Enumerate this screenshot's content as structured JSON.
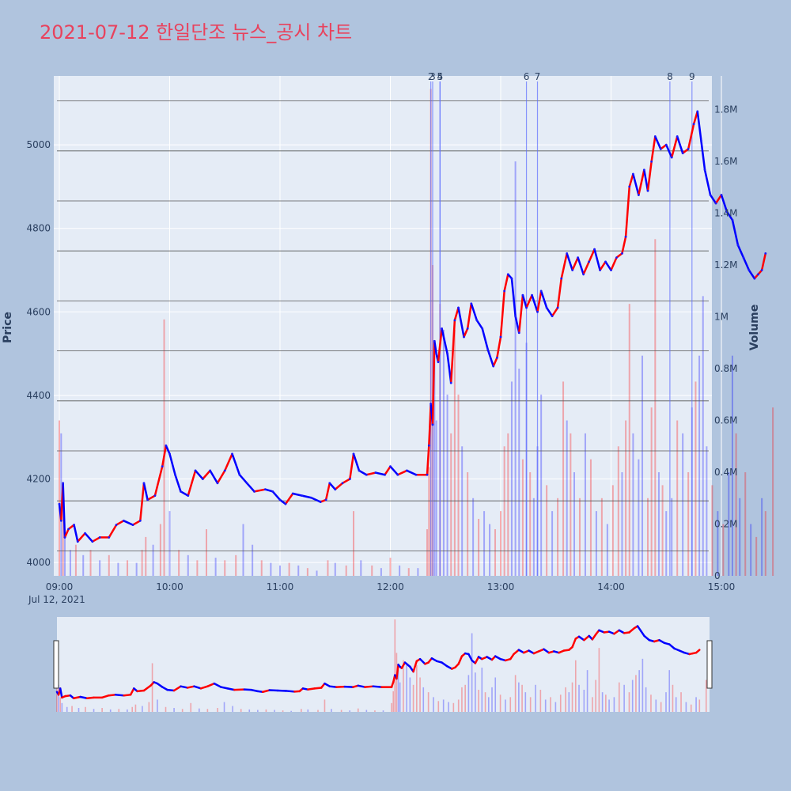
{
  "title": "2021-07-12 한일단조 뉴스_공시 차트",
  "colors": {
    "background": "#b0c4de",
    "plot_bg": "#e5ecf6",
    "title": "#e8425d",
    "up": "#ff0000",
    "down": "#0000ff",
    "marker": "#6070ff",
    "hline": "#555555"
  },
  "chart_data": {
    "type": "line",
    "ylabel": "Price",
    "y2label": "Volume",
    "x_ticks": [
      "09:00",
      "10:00",
      "11:00",
      "12:00",
      "13:00",
      "14:00",
      "15:00"
    ],
    "date_label": "Jul 12, 2021",
    "xlim": [
      "09:00",
      "15:30"
    ],
    "ylim": [
      3968,
      5165
    ],
    "y_ticks": [
      "4000",
      "4200",
      "4400",
      "4600",
      "4800",
      "5000"
    ],
    "y2lim": [
      0,
      1.93
    ],
    "y2_ticks": [
      "0",
      "0.2M",
      "0.4M",
      "0.6M",
      "0.8M",
      "1M",
      "1.2M",
      "1.4M",
      "1.6M",
      "1.8M"
    ],
    "y2_tick_values": [
      0,
      0.2,
      0.4,
      0.6,
      0.8,
      1.0,
      1.2,
      1.4,
      1.6,
      1.8
    ],
    "y2_unit": "M",
    "horizontal_lines": [
      0.05,
      0.15,
      0.25,
      0.35,
      0.45,
      0.55,
      0.65,
      0.75,
      0.85,
      0.95
    ],
    "news_markers": [
      {
        "label": "2",
        "time": "12:22"
      },
      {
        "label": "3",
        "time": "12:23"
      },
      {
        "label": "4",
        "time": "12:27"
      },
      {
        "label": "5",
        "time": "12:27"
      },
      {
        "label": "6",
        "time": "13:14"
      },
      {
        "label": "7",
        "time": "13:20"
      },
      {
        "label": "8",
        "time": "14:32"
      },
      {
        "label": "9",
        "time": "14:44"
      }
    ],
    "price": [
      [
        "09:00",
        4140
      ],
      [
        "09:01",
        4100
      ],
      [
        "09:02",
        4190
      ],
      [
        "09:03",
        4060
      ],
      [
        "09:05",
        4080
      ],
      [
        "09:08",
        4090
      ],
      [
        "09:10",
        4050
      ],
      [
        "09:14",
        4070
      ],
      [
        "09:18",
        4050
      ],
      [
        "09:22",
        4060
      ],
      [
        "09:27",
        4060
      ],
      [
        "09:31",
        4090
      ],
      [
        "09:35",
        4100
      ],
      [
        "09:40",
        4090
      ],
      [
        "09:44",
        4100
      ],
      [
        "09:46",
        4190
      ],
      [
        "09:48",
        4150
      ],
      [
        "09:52",
        4160
      ],
      [
        "09:56",
        4230
      ],
      [
        "09:58",
        4280
      ],
      [
        "10:00",
        4260
      ],
      [
        "10:03",
        4210
      ],
      [
        "10:06",
        4170
      ],
      [
        "10:10",
        4160
      ],
      [
        "10:14",
        4220
      ],
      [
        "10:18",
        4200
      ],
      [
        "10:22",
        4220
      ],
      [
        "10:26",
        4190
      ],
      [
        "10:30",
        4220
      ],
      [
        "10:34",
        4260
      ],
      [
        "10:38",
        4210
      ],
      [
        "10:42",
        4190
      ],
      [
        "10:46",
        4170
      ],
      [
        "10:52",
        4175
      ],
      [
        "10:56",
        4170
      ],
      [
        "11:00",
        4150
      ],
      [
        "11:03",
        4140
      ],
      [
        "11:07",
        4165
      ],
      [
        "11:12",
        4160
      ],
      [
        "11:17",
        4155
      ],
      [
        "11:22",
        4145
      ],
      [
        "11:25",
        4150
      ],
      [
        "11:27",
        4190
      ],
      [
        "11:30",
        4175
      ],
      [
        "11:34",
        4190
      ],
      [
        "11:38",
        4200
      ],
      [
        "11:40",
        4260
      ],
      [
        "11:43",
        4220
      ],
      [
        "11:47",
        4210
      ],
      [
        "11:52",
        4215
      ],
      [
        "11:57",
        4210
      ],
      [
        "12:00",
        4230
      ],
      [
        "12:04",
        4210
      ],
      [
        "12:09",
        4220
      ],
      [
        "12:14",
        4210
      ],
      [
        "12:20",
        4210
      ],
      [
        "12:21",
        4280
      ],
      [
        "12:22",
        4380
      ],
      [
        "12:23",
        4330
      ],
      [
        "12:24",
        4530
      ],
      [
        "12:25",
        4500
      ],
      [
        "12:26",
        4480
      ],
      [
        "12:28",
        4560
      ],
      [
        "12:31",
        4500
      ],
      [
        "12:33",
        4430
      ],
      [
        "12:35",
        4580
      ],
      [
        "12:37",
        4610
      ],
      [
        "12:40",
        4540
      ],
      [
        "12:42",
        4560
      ],
      [
        "12:44",
        4620
      ],
      [
        "12:47",
        4580
      ],
      [
        "12:50",
        4560
      ],
      [
        "12:53",
        4510
      ],
      [
        "12:56",
        4470
      ],
      [
        "12:58",
        4490
      ],
      [
        "13:00",
        4540
      ],
      [
        "13:02",
        4650
      ],
      [
        "13:04",
        4690
      ],
      [
        "13:06",
        4680
      ],
      [
        "13:08",
        4590
      ],
      [
        "13:10",
        4550
      ],
      [
        "13:12",
        4640
      ],
      [
        "13:14",
        4610
      ],
      [
        "13:17",
        4640
      ],
      [
        "13:20",
        4600
      ],
      [
        "13:22",
        4650
      ],
      [
        "13:25",
        4610
      ],
      [
        "13:28",
        4590
      ],
      [
        "13:31",
        4610
      ],
      [
        "13:33",
        4680
      ],
      [
        "13:36",
        4740
      ],
      [
        "13:39",
        4700
      ],
      [
        "13:42",
        4730
      ],
      [
        "13:45",
        4690
      ],
      [
        "13:48",
        4720
      ],
      [
        "13:51",
        4750
      ],
      [
        "13:54",
        4700
      ],
      [
        "13:57",
        4720
      ],
      [
        "14:00",
        4700
      ],
      [
        "14:03",
        4730
      ],
      [
        "14:06",
        4740
      ],
      [
        "14:08",
        4780
      ],
      [
        "14:10",
        4900
      ],
      [
        "14:12",
        4930
      ],
      [
        "14:15",
        4880
      ],
      [
        "14:18",
        4940
      ],
      [
        "14:20",
        4890
      ],
      [
        "14:22",
        4960
      ],
      [
        "14:24",
        5020
      ],
      [
        "14:27",
        4990
      ],
      [
        "14:30",
        5000
      ],
      [
        "14:33",
        4970
      ],
      [
        "14:36",
        5020
      ],
      [
        "14:39",
        4980
      ],
      [
        "14:42",
        4990
      ],
      [
        "14:45",
        5050
      ],
      [
        "14:47",
        5080
      ],
      [
        "14:49",
        5010
      ],
      [
        "14:51",
        4940
      ],
      [
        "14:54",
        4880
      ],
      [
        "14:57",
        4860
      ],
      [
        "15:00",
        4880
      ],
      [
        "15:03",
        4840
      ],
      [
        "15:06",
        4820
      ],
      [
        "15:09",
        4760
      ],
      [
        "15:12",
        4730
      ],
      [
        "15:15",
        4700
      ],
      [
        "15:18",
        4680
      ],
      [
        "15:20",
        4690
      ],
      [
        "15:22",
        4700
      ],
      [
        "15:24",
        4740
      ]
    ],
    "volume": [
      [
        "09:00",
        0.6,
        "up"
      ],
      [
        "09:01",
        0.55,
        "down"
      ],
      [
        "09:02",
        0.3,
        "up"
      ],
      [
        "09:03",
        0.18,
        "down"
      ],
      [
        "09:06",
        0.1,
        "down"
      ],
      [
        "09:09",
        0.12,
        "up"
      ],
      [
        "09:13",
        0.08,
        "down"
      ],
      [
        "09:17",
        0.1,
        "up"
      ],
      [
        "09:22",
        0.06,
        "down"
      ],
      [
        "09:27",
        0.08,
        "up"
      ],
      [
        "09:32",
        0.05,
        "down"
      ],
      [
        "09:37",
        0.06,
        "up"
      ],
      [
        "09:42",
        0.05,
        "down"
      ],
      [
        "09:45",
        0.1,
        "up"
      ],
      [
        "09:47",
        0.15,
        "up"
      ],
      [
        "09:51",
        0.12,
        "down"
      ],
      [
        "09:55",
        0.2,
        "up"
      ],
      [
        "09:57",
        0.99,
        "up"
      ],
      [
        "10:00",
        0.25,
        "down"
      ],
      [
        "10:05",
        0.1,
        "up"
      ],
      [
        "10:10",
        0.08,
        "down"
      ],
      [
        "10:15",
        0.06,
        "up"
      ],
      [
        "10:20",
        0.18,
        "up"
      ],
      [
        "10:25",
        0.07,
        "down"
      ],
      [
        "10:30",
        0.06,
        "up"
      ],
      [
        "10:36",
        0.08,
        "up"
      ],
      [
        "10:40",
        0.2,
        "down"
      ],
      [
        "10:45",
        0.12,
        "down"
      ],
      [
        "10:50",
        0.06,
        "up"
      ],
      [
        "10:55",
        0.05,
        "down"
      ],
      [
        "11:00",
        0.04,
        "down"
      ],
      [
        "11:05",
        0.05,
        "up"
      ],
      [
        "11:10",
        0.04,
        "down"
      ],
      [
        "11:15",
        0.03,
        "up"
      ],
      [
        "11:20",
        0.02,
        "down"
      ],
      [
        "11:26",
        0.06,
        "up"
      ],
      [
        "11:30",
        0.05,
        "down"
      ],
      [
        "11:36",
        0.04,
        "up"
      ],
      [
        "11:40",
        0.25,
        "up"
      ],
      [
        "11:44",
        0.06,
        "down"
      ],
      [
        "11:50",
        0.04,
        "up"
      ],
      [
        "11:55",
        0.03,
        "down"
      ],
      [
        "12:00",
        0.07,
        "up"
      ],
      [
        "12:05",
        0.04,
        "down"
      ],
      [
        "12:10",
        0.03,
        "up"
      ],
      [
        "12:15",
        0.03,
        "down"
      ],
      [
        "12:20",
        0.18,
        "up"
      ],
      [
        "12:21",
        0.42,
        "up"
      ],
      [
        "12:22",
        1.88,
        "up"
      ],
      [
        "12:23",
        1.2,
        "up"
      ],
      [
        "12:24",
        0.85,
        "down"
      ],
      [
        "12:25",
        0.6,
        "down"
      ],
      [
        "12:27",
        1.05,
        "up"
      ],
      [
        "12:29",
        0.95,
        "down"
      ],
      [
        "12:31",
        0.7,
        "down"
      ],
      [
        "12:33",
        0.55,
        "up"
      ],
      [
        "12:35",
        0.95,
        "up"
      ],
      [
        "12:37",
        0.7,
        "up"
      ],
      [
        "12:39",
        0.5,
        "down"
      ],
      [
        "12:42",
        0.4,
        "up"
      ],
      [
        "12:45",
        0.3,
        "down"
      ],
      [
        "12:48",
        0.22,
        "up"
      ],
      [
        "12:51",
        0.25,
        "down"
      ],
      [
        "12:54",
        0.2,
        "down"
      ],
      [
        "12:57",
        0.18,
        "up"
      ],
      [
        "13:00",
        0.25,
        "up"
      ],
      [
        "13:02",
        0.5,
        "up"
      ],
      [
        "13:04",
        0.55,
        "up"
      ],
      [
        "13:06",
        0.75,
        "down"
      ],
      [
        "13:08",
        1.6,
        "down"
      ],
      [
        "13:10",
        0.8,
        "down"
      ],
      [
        "13:12",
        0.45,
        "up"
      ],
      [
        "13:14",
        0.9,
        "down"
      ],
      [
        "13:16",
        0.4,
        "up"
      ],
      [
        "13:18",
        0.3,
        "down"
      ],
      [
        "13:20",
        0.5,
        "down"
      ],
      [
        "13:22",
        0.7,
        "down"
      ],
      [
        "13:25",
        0.35,
        "up"
      ],
      [
        "13:28",
        0.25,
        "down"
      ],
      [
        "13:31",
        0.3,
        "up"
      ],
      [
        "13:34",
        0.75,
        "up"
      ],
      [
        "13:36",
        0.6,
        "down"
      ],
      [
        "13:38",
        0.55,
        "up"
      ],
      [
        "13:40",
        0.4,
        "down"
      ],
      [
        "13:43",
        0.3,
        "up"
      ],
      [
        "13:46",
        0.55,
        "down"
      ],
      [
        "13:49",
        0.45,
        "up"
      ],
      [
        "13:52",
        0.25,
        "down"
      ],
      [
        "13:55",
        0.3,
        "up"
      ],
      [
        "13:58",
        0.2,
        "down"
      ],
      [
        "14:01",
        0.35,
        "up"
      ],
      [
        "14:04",
        0.5,
        "up"
      ],
      [
        "14:06",
        0.4,
        "down"
      ],
      [
        "14:08",
        0.6,
        "up"
      ],
      [
        "14:10",
        1.05,
        "up"
      ],
      [
        "14:12",
        0.55,
        "down"
      ],
      [
        "14:15",
        0.45,
        "down"
      ],
      [
        "14:17",
        0.85,
        "down"
      ],
      [
        "14:20",
        0.3,
        "up"
      ],
      [
        "14:22",
        0.65,
        "up"
      ],
      [
        "14:24",
        1.3,
        "up"
      ],
      [
        "14:26",
        0.4,
        "down"
      ],
      [
        "14:28",
        0.35,
        "up"
      ],
      [
        "14:30",
        0.25,
        "down"
      ],
      [
        "14:33",
        0.3,
        "down"
      ],
      [
        "14:36",
        0.6,
        "up"
      ],
      [
        "14:39",
        0.55,
        "down"
      ],
      [
        "14:42",
        0.4,
        "up"
      ],
      [
        "14:44",
        0.65,
        "down"
      ],
      [
        "14:46",
        0.75,
        "up"
      ],
      [
        "14:48",
        0.85,
        "down"
      ],
      [
        "14:50",
        1.08,
        "down"
      ],
      [
        "14:52",
        0.5,
        "down"
      ],
      [
        "14:55",
        0.35,
        "up"
      ],
      [
        "14:58",
        0.25,
        "down"
      ],
      [
        "15:01",
        0.2,
        "up"
      ],
      [
        "15:04",
        0.4,
        "down"
      ],
      [
        "15:06",
        0.85,
        "down"
      ],
      [
        "15:08",
        0.55,
        "up"
      ],
      [
        "15:10",
        0.3,
        "down"
      ],
      [
        "15:13",
        0.4,
        "up"
      ],
      [
        "15:16",
        0.2,
        "down"
      ],
      [
        "15:19",
        0.15,
        "up"
      ],
      [
        "15:22",
        0.3,
        "down"
      ],
      [
        "15:24",
        0.25,
        "up"
      ],
      [
        "15:28",
        0.65,
        "up"
      ]
    ]
  }
}
